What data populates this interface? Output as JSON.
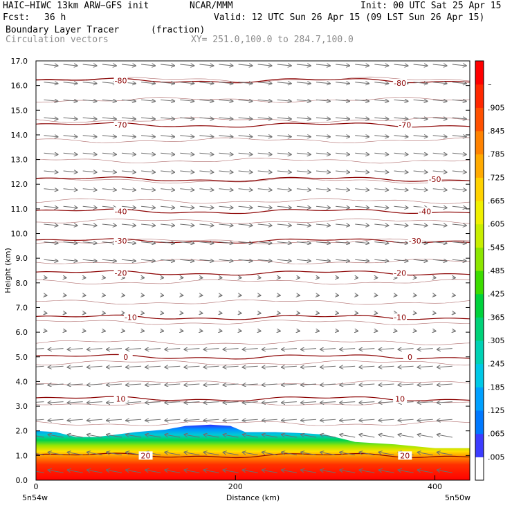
{
  "header": {
    "model": "HAIC−HIWC 13km ARW−GFS init",
    "org": "NCAR/MMM",
    "init": "Init: 00 UTC Sat 25 Apr 15",
    "fcst_label": "Fcst:",
    "fcst_value": "36 h",
    "valid": "Valid: 12 UTC Sun 26 Apr 15 (09 LST Sun 26 Apr 15)",
    "field1": "Boundary Layer Tracer",
    "field1_units": "(fraction)",
    "field2": "Circulation vectors",
    "xy": "XY= 251.0,100.0 to 284.7,100.0"
  },
  "chart_data": {
    "type": "heatmap",
    "xlabel": "Distance (km)",
    "ylabel": "Height (km)",
    "xlim": [
      0,
      435
    ],
    "ylim": [
      0,
      17
    ],
    "x_ticks": [
      "0",
      "200",
      "400"
    ],
    "x_tick_values": [
      0,
      200,
      400
    ],
    "x_end_labels": [
      "5n54w",
      "5n50w"
    ],
    "y_ticks": [
      "0.0",
      "1.0",
      "2.0",
      "3.0",
      "4.0",
      "5.0",
      "6.0",
      "7.0",
      "8.0",
      "9.0",
      "10.0",
      "11.0",
      "12.0",
      "13.0",
      "14.0",
      "15.0",
      "16.0",
      "17.0"
    ],
    "colorbar": {
      "labels": [
        ".005",
        ".065",
        ".125",
        ".185",
        ".245",
        ".305",
        ".365",
        ".425",
        ".485",
        ".545",
        ".605",
        ".665",
        ".725",
        ".785",
        ".845",
        ".905",
        "–"
      ],
      "colors": [
        "#ffffff",
        "#3c3cff",
        "#0078ff",
        "#00a0ff",
        "#00c8e6",
        "#00d2b4",
        "#00d278",
        "#00d23c",
        "#3cdc00",
        "#8ce600",
        "#c8ee00",
        "#f0f000",
        "#ffd200",
        "#ffaa00",
        "#ff8200",
        "#ff5000",
        "#ff2800",
        "#ff0000"
      ]
    },
    "tracer_top_km": [
      [
        0,
        2.0
      ],
      [
        20,
        1.95
      ],
      [
        40,
        1.75
      ],
      [
        60,
        1.75
      ],
      [
        80,
        1.85
      ],
      [
        100,
        1.95
      ],
      [
        130,
        2.05
      ],
      [
        150,
        2.2
      ],
      [
        175,
        2.25
      ],
      [
        195,
        2.2
      ],
      [
        210,
        1.95
      ],
      [
        240,
        1.95
      ],
      [
        270,
        1.9
      ],
      [
        290,
        1.85
      ],
      [
        320,
        1.55
      ],
      [
        360,
        1.45
      ],
      [
        400,
        1.3
      ],
      [
        435,
        1.3
      ]
    ],
    "temperature_contours": [
      {
        "value": "-80",
        "height_km": 16.2
      },
      {
        "value": "-70",
        "height_km": 14.4
      },
      {
        "value": "-50",
        "height_km": 12.2
      },
      {
        "value": "-40",
        "height_km": 10.9
      },
      {
        "value": "-30",
        "height_km": 9.7
      },
      {
        "value": "-20",
        "height_km": 8.4
      },
      {
        "value": "-10",
        "height_km": 6.6
      },
      {
        "value": "0",
        "height_km": 5.0
      },
      {
        "value": "10",
        "height_km": 3.3
      },
      {
        "value": "20",
        "height_km": 1.0
      }
    ],
    "contour_labels": [
      {
        "text": "-80",
        "x": 85,
        "y": 16.2
      },
      {
        "text": "-80",
        "x": 365,
        "y": 16.1
      },
      {
        "text": "-70",
        "x": 85,
        "y": 14.4
      },
      {
        "text": "-70",
        "x": 370,
        "y": 14.4
      },
      {
        "text": "-50",
        "x": 400,
        "y": 12.2
      },
      {
        "text": "-40",
        "x": 85,
        "y": 10.9
      },
      {
        "text": "-40",
        "x": 390,
        "y": 10.9
      },
      {
        "text": "-30",
        "x": 85,
        "y": 9.7
      },
      {
        "text": "-30",
        "x": 380,
        "y": 9.7
      },
      {
        "text": "-20",
        "x": 85,
        "y": 8.4
      },
      {
        "text": "-20",
        "x": 365,
        "y": 8.4
      },
      {
        "text": "-10",
        "x": 95,
        "y": 6.6
      },
      {
        "text": "-10",
        "x": 365,
        "y": 6.6
      },
      {
        "text": "0",
        "x": 90,
        "y": 5.0
      },
      {
        "text": "0",
        "x": 375,
        "y": 5.0
      },
      {
        "text": "10",
        "x": 85,
        "y": 3.3
      },
      {
        "text": "10",
        "x": 365,
        "y": 3.3
      },
      {
        "text": "20",
        "x": 110,
        "y": 1.0
      },
      {
        "text": "20",
        "x": 370,
        "y": 1.0
      }
    ],
    "wind_direction_by_layer": [
      {
        "from_km": 0,
        "to_km": 6.0,
        "direction": "westward"
      },
      {
        "from_km": 6.0,
        "to_km": 8.5,
        "direction": "weak"
      },
      {
        "from_km": 8.5,
        "to_km": 17,
        "direction": "eastward"
      }
    ]
  }
}
